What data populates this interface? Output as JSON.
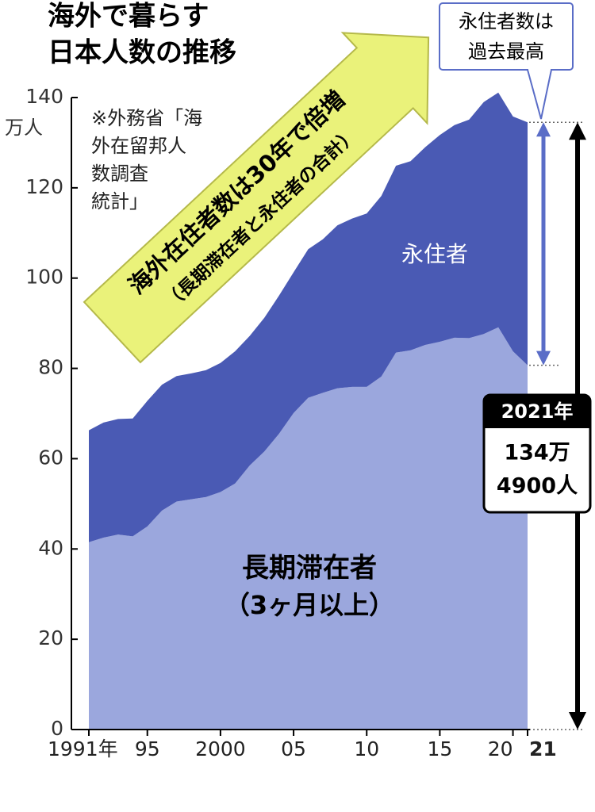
{
  "chart_data": {
    "type": "stacked_area",
    "title_lines": [
      "海外で暮らす",
      "日本人数の推移"
    ],
    "source_lines": [
      "※外務省「海",
      "外在留邦人",
      "数調査",
      "統計」"
    ],
    "banner_lines": [
      "海外在住者数は30年で倍増",
      "（長期滞在者と永住者の合計）"
    ],
    "callout_lines": [
      "永住者数は",
      "過去最高"
    ],
    "total_label": [
      "2021年",
      "134万",
      "4900人"
    ],
    "y_unit": "万人",
    "x": [
      1991,
      1992,
      1993,
      1994,
      1995,
      1996,
      1997,
      1998,
      1999,
      2000,
      2001,
      2002,
      2003,
      2004,
      2005,
      2006,
      2007,
      2008,
      2009,
      2010,
      2011,
      2012,
      2013,
      2014,
      2015,
      2016,
      2017,
      2018,
      2019,
      2020,
      2021
    ],
    "series": [
      {
        "name": "長期滞在者",
        "note": "（3ヶ月以上）",
        "color": "#9ba7dd",
        "values": [
          41.5,
          42.5,
          43.2,
          42.8,
          45.0,
          48.5,
          50.5,
          51.0,
          51.5,
          52.6,
          54.5,
          58.5,
          61.6,
          65.5,
          70.1,
          73.5,
          74.6,
          75.6,
          75.9,
          75.9,
          78.2,
          83.5,
          84.0,
          85.2,
          85.9,
          86.8,
          86.7,
          87.6,
          89.1,
          83.8,
          80.7
        ]
      },
      {
        "name": "永住者",
        "color": "#4a5ab4",
        "values": [
          24.8,
          25.5,
          25.6,
          26.1,
          27.8,
          27.9,
          27.8,
          27.9,
          28.1,
          28.6,
          29.3,
          28.7,
          29.6,
          30.6,
          31.2,
          32.9,
          34.0,
          36.1,
          37.3,
          38.4,
          40.0,
          41.4,
          41.9,
          43.8,
          45.8,
          47.1,
          48.4,
          51.4,
          52.0,
          52.0,
          53.8
        ]
      }
    ],
    "xlim": [
      1991,
      2021
    ],
    "xticks": [
      {
        "value": 1991,
        "label": "1991年"
      },
      {
        "value": 1995,
        "label": "95"
      },
      2000,
      {
        "value": 2005,
        "label": "05"
      },
      {
        "value": 2010,
        "label": "10"
      },
      {
        "value": 2015,
        "label": "15"
      },
      {
        "value": 2020,
        "label": "20"
      },
      {
        "value": 2021,
        "label": "21"
      }
    ],
    "ylim": [
      0,
      140
    ],
    "yticks": [
      0,
      20,
      40,
      60,
      80,
      100,
      120,
      140
    ]
  }
}
